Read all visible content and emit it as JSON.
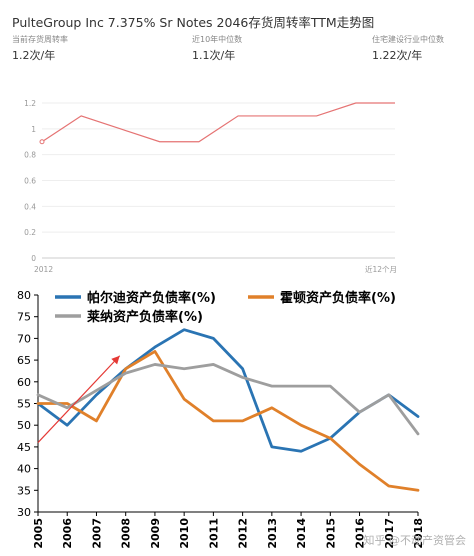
{
  "top_panel": {
    "title": "PulteGroup Inc 7.375% Sr Notes 2046存货周转率TTM走势图",
    "stats": [
      {
        "label": "当前存货周转率",
        "value": "1.2次/年"
      },
      {
        "label": "近10年中位数",
        "value": "1.1次/年"
      },
      {
        "label": "住宅建设行业中位数",
        "value": "1.22次/年"
      }
    ]
  },
  "watermark": "知乎 @不动产资管会",
  "chart_data": [
    {
      "type": "line",
      "title": "",
      "xlabel": "",
      "ylabel": "",
      "x_tick_labels": [
        "2012",
        "近12个月"
      ],
      "y_ticks": [
        "0",
        "0.2",
        "0.4",
        "0.6",
        "0.8",
        "1",
        "1.2"
      ],
      "ylim": [
        0,
        1.2
      ],
      "grid": true,
      "color": "#e57373",
      "series": [
        {
          "x": [
            2012,
            2013,
            2014,
            2015,
            2016,
            2017,
            2018,
            2019,
            2020,
            2021
          ],
          "values": [
            0.9,
            1.1,
            1.0,
            0.9,
            0.9,
            1.1,
            1.1,
            1.1,
            1.2,
            1.2
          ]
        }
      ]
    },
    {
      "type": "line",
      "title": "",
      "xlabel": "",
      "ylabel": "",
      "categories": [
        "2005",
        "2006",
        "2007",
        "2008",
        "2009",
        "2010",
        "2011",
        "2012",
        "2013",
        "2014",
        "2015",
        "2016",
        "2017",
        "2018"
      ],
      "y_ticks": [
        "30",
        "35",
        "40",
        "45",
        "50",
        "55",
        "60",
        "65",
        "70",
        "75",
        "80"
      ],
      "ylim": [
        30,
        80
      ],
      "grid": false,
      "legend_position": "top",
      "series": [
        {
          "name": "帕尔迪资产负债率(%)",
          "color": "#2a74b3",
          "values": [
            55,
            50,
            57,
            63,
            68,
            72,
            70,
            63,
            45,
            44,
            47,
            53,
            57,
            52
          ]
        },
        {
          "name": "霍顿资产负债率(%)",
          "color": "#e0802a",
          "values": [
            55,
            55,
            51,
            63,
            67,
            56,
            51,
            51,
            54,
            50,
            47,
            41,
            36,
            35
          ]
        },
        {
          "name": "莱纳资产负债率(%)",
          "color": "#9e9e9e",
          "values": [
            57,
            54,
            58,
            62,
            64,
            63,
            64,
            61,
            59,
            59,
            59,
            53,
            57,
            48
          ]
        }
      ],
      "annotation": {
        "type": "arrow",
        "color": "#e53935",
        "from": [
          2005,
          46
        ],
        "to": [
          2008,
          66
        ]
      }
    }
  ]
}
